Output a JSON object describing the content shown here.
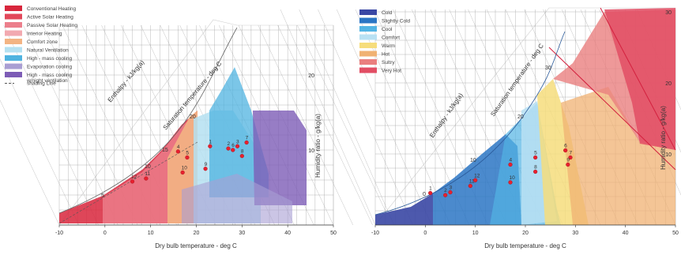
{
  "chart_data": [
    {
      "type": "scatter",
      "subtype": "psychrometric-chart",
      "xlabel": "Dry bulb temperature - deg C",
      "xlim": [
        -10,
        50
      ],
      "x_ticks": [
        "-10",
        "0",
        "10",
        "20",
        "30",
        "40",
        "50"
      ],
      "rotated_labels": {
        "enthalpy": "Enthalpy - kJ/kg(a)",
        "saturation": "Saturation temperature - deg C",
        "humidity": "Humidity ratio - g/kg(a)"
      },
      "humidity_ticks": [
        "10",
        "20"
      ],
      "saturation_ticks": [
        "5",
        "10",
        "15",
        "20"
      ],
      "legend_position": "top-left",
      "legend": [
        {
          "label": "Conventional Heating",
          "color": "#d8263c"
        },
        {
          "label": "Active Solar Heating",
          "color": "#e2485a"
        },
        {
          "label": "Passive Solar Heating",
          "color": "#ec7f8c"
        },
        {
          "label": "Interior Heating",
          "color": "#f2a9b0"
        },
        {
          "label": "Comfort zone",
          "color": "#f3b483"
        },
        {
          "label": "Natural Ventilation",
          "color": "#b5e1f1"
        },
        {
          "label": "High - mass cooling",
          "color": "#4fb3e0"
        },
        {
          "label": "Evaporation cooling",
          "color": "#a99ed3"
        },
        {
          "label": "High - mass cooling\nw/night ventilation",
          "color": "#7d5cb6"
        },
        {
          "label": "shading Line",
          "color": "#555555"
        }
      ],
      "points": [
        {
          "label": "1",
          "x": 23,
          "y": 10.5
        },
        {
          "label": "2",
          "x": 27,
          "y": 10.2
        },
        {
          "label": "3",
          "x": 29,
          "y": 10.5
        },
        {
          "label": "4",
          "x": 16,
          "y": 9.8
        },
        {
          "label": "5",
          "x": 18,
          "y": 9.0
        },
        {
          "label": "6",
          "x": 28,
          "y": 10.0
        },
        {
          "label": "7",
          "x": 31,
          "y": 11.0
        },
        {
          "label": "8",
          "x": 30,
          "y": 9.2
        },
        {
          "label": "9",
          "x": 22,
          "y": 7.5
        },
        {
          "label": "10",
          "x": 17,
          "y": 7.0
        },
        {
          "label": "11",
          "x": 9,
          "y": 6.2
        },
        {
          "label": "12",
          "x": 6,
          "y": 5.8
        }
      ]
    },
    {
      "type": "scatter",
      "subtype": "psychrometric-chart",
      "xlabel": "Dry bulb temperature - deg C",
      "xlim": [
        -10,
        50
      ],
      "x_ticks": [
        "-10",
        "0",
        "10",
        "20",
        "30",
        "40",
        "50"
      ],
      "rotated_labels": {
        "enthalpy": "Enthalpy - kJ/kg(a)",
        "saturation": "Saturation temperature - deg C",
        "humidity": "Humidity ratio - g/kg(a)"
      },
      "humidity_ticks": [
        "10",
        "20",
        "30"
      ],
      "saturation_ticks": [
        "0",
        "10",
        "20",
        "30"
      ],
      "legend_position": "top-left",
      "legend": [
        {
          "label": "Cold",
          "color": "#3a47a4"
        },
        {
          "label": "Slightly Cold",
          "color": "#2b75c4"
        },
        {
          "label": "Cool",
          "color": "#53b4e4"
        },
        {
          "label": "Comfort",
          "color": "#b8e1f3"
        },
        {
          "label": "Warm",
          "color": "#f6dd7c"
        },
        {
          "label": "Hot",
          "color": "#f0b273"
        },
        {
          "label": "Sultry",
          "color": "#ea7f7f"
        },
        {
          "label": "Very Hot",
          "color": "#e24e64"
        }
      ],
      "points": [
        {
          "label": "1",
          "x": 1,
          "y": 4.5
        },
        {
          "label": "2",
          "x": 4,
          "y": 4.2
        },
        {
          "label": "3",
          "x": 5,
          "y": 4.6
        },
        {
          "label": "4",
          "x": 17,
          "y": 8.5
        },
        {
          "label": "5",
          "x": 22,
          "y": 9.5
        },
        {
          "label": "6",
          "x": 28,
          "y": 10.5
        },
        {
          "label": "7",
          "x": 29,
          "y": 9.5
        },
        {
          "label": "8",
          "x": 22,
          "y": 7.5
        },
        {
          "label": "9",
          "x": 28.5,
          "y": 8.5
        },
        {
          "label": "10",
          "x": 17,
          "y": 6.0
        },
        {
          "label": "11",
          "x": 9,
          "y": 5.5
        },
        {
          "label": "12",
          "x": 10,
          "y": 6.3
        }
      ]
    }
  ]
}
